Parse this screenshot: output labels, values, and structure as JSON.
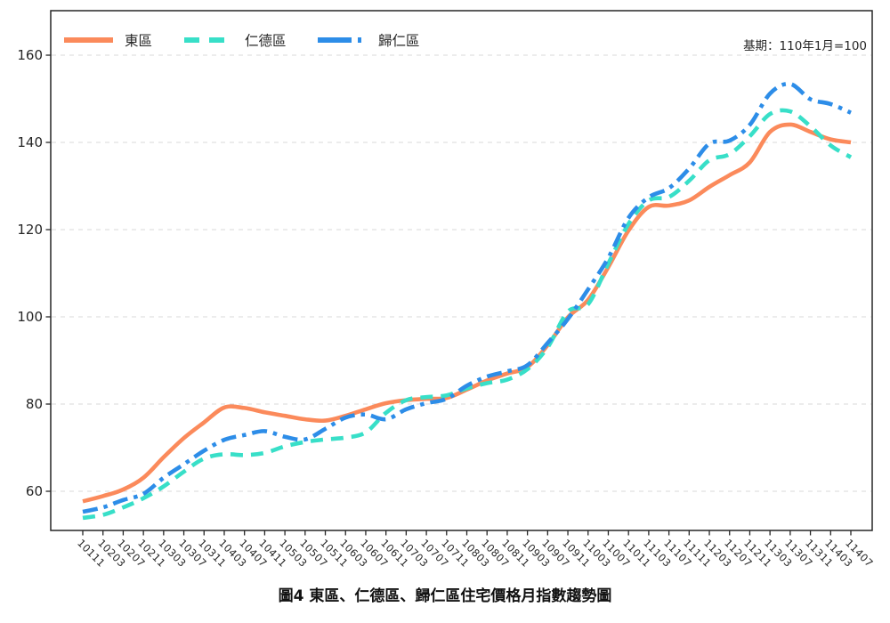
{
  "chart_data": {
    "type": "line",
    "title": "圖4 東區、仁德區、歸仁區住宅價格月指數趨勢圖",
    "annotation": "基期：110年1月=100",
    "legend_position": "top-left inside",
    "grid": "horizontal dashed",
    "ylim": [
      51,
      170
    ],
    "yticks": [
      60,
      80,
      100,
      120,
      140,
      160
    ],
    "x_tick_labels": [
      "10111",
      "10203",
      "10207",
      "10211",
      "10303",
      "10307",
      "10311",
      "10403",
      "10407",
      "10411",
      "10503",
      "10507",
      "10511",
      "10603",
      "10607",
      "10611",
      "10703",
      "10707",
      "10711",
      "10803",
      "10807",
      "10811",
      "10903",
      "10907",
      "10911",
      "11003",
      "11007",
      "11011",
      "11103",
      "11107",
      "11111",
      "11203",
      "11207",
      "11211",
      "11303",
      "11307",
      "11311",
      "11403",
      "11407"
    ],
    "series": [
      {
        "name": "東區",
        "color": "#FB8A5B",
        "line_style": "solid",
        "values": [
          57.7,
          58.9,
          60.4,
          63.1,
          67.8,
          72.2,
          75.8,
          79.2,
          79.1,
          78.1,
          77.3,
          76.5,
          76.2,
          77.3,
          78.8,
          80.2,
          80.9,
          81.2,
          81.4,
          83.3,
          85.4,
          87.0,
          88.5,
          93.5,
          99.9,
          103.9,
          111.4,
          119.8,
          125.2,
          125.5,
          126.7,
          129.8,
          132.5,
          135.4,
          142.4,
          144.1,
          142.4,
          140.7,
          140.0
        ]
      },
      {
        "name": "仁德區",
        "color": "#38DFC8",
        "line_style": "dashed",
        "values": [
          53.9,
          54.6,
          56.3,
          58.4,
          61.1,
          64.5,
          67.5,
          68.5,
          68.3,
          68.8,
          70.3,
          71.3,
          71.9,
          72.3,
          73.5,
          78.0,
          80.9,
          81.6,
          82.0,
          83.6,
          84.8,
          85.6,
          88.0,
          93.0,
          101.2,
          102.9,
          112.2,
          121.3,
          126.7,
          127.5,
          131.2,
          135.9,
          137.3,
          141.4,
          146.5,
          147.1,
          143.7,
          139.3,
          136.6
        ]
      },
      {
        "name": "歸仁區",
        "color": "#2D8DE8",
        "line_style": "dashdot",
        "values": [
          55.3,
          56.3,
          58.0,
          59.4,
          63.1,
          66.2,
          69.3,
          71.8,
          72.9,
          73.8,
          72.5,
          71.9,
          74.3,
          76.9,
          77.6,
          76.5,
          78.8,
          80.2,
          81.2,
          84.2,
          86.3,
          87.5,
          88.9,
          94.0,
          99.5,
          106.3,
          113.5,
          122.7,
          127.4,
          129.5,
          134.0,
          139.7,
          140.4,
          144.0,
          151.2,
          153.4,
          149.9,
          148.8,
          146.8
        ]
      }
    ]
  }
}
